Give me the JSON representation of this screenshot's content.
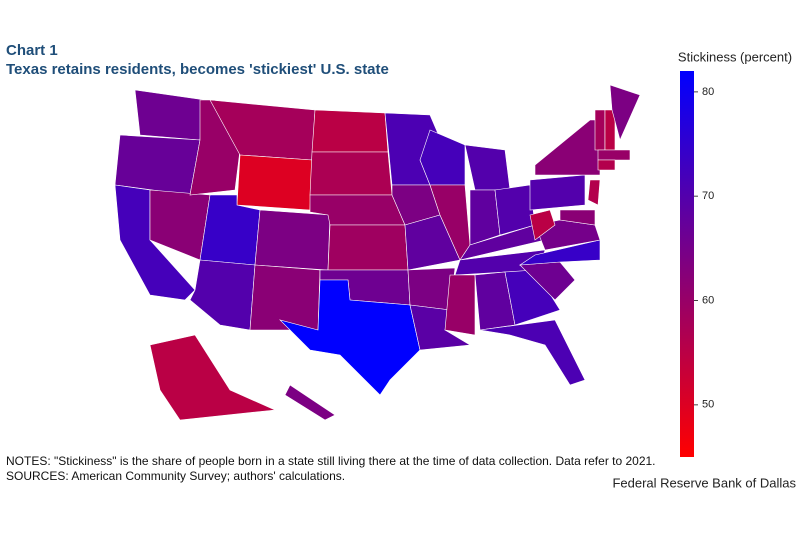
{
  "chart_data": {
    "type": "choropleth",
    "label": "Chart 1",
    "title": "Texas retains residents, becomes 'stickiest' U.S. state",
    "colorbar_title": "Stickiness (percent)",
    "values": [
      66,
      67,
      72,
      62,
      60,
      58,
      50,
      74,
      70,
      64,
      62,
      55,
      57,
      60,
      59,
      66,
      82,
      71,
      64,
      68,
      64,
      69,
      72,
      60,
      70,
      68,
      70,
      68,
      70,
      60,
      68,
      72,
      71,
      66,
      74,
      65,
      55,
      70,
      62,
      56,
      62,
      58,
      55,
      64,
      60,
      56,
      55,
      64
    ],
    "colors": [
      "#ff0000",
      "#0000ff"
    ],
    "clim": [
      45,
      82
    ],
    "cticks": [
      50,
      60,
      70,
      80
    ],
    "notes": "NOTES: \"Stickiness\" is the share of people born in a state still living there at the time of data collection. Data refer to 2021.",
    "sources": "SOURCES: American Community Survey; authors' calculations.",
    "credit": "Federal Reserve Bank of Dallas"
  }
}
